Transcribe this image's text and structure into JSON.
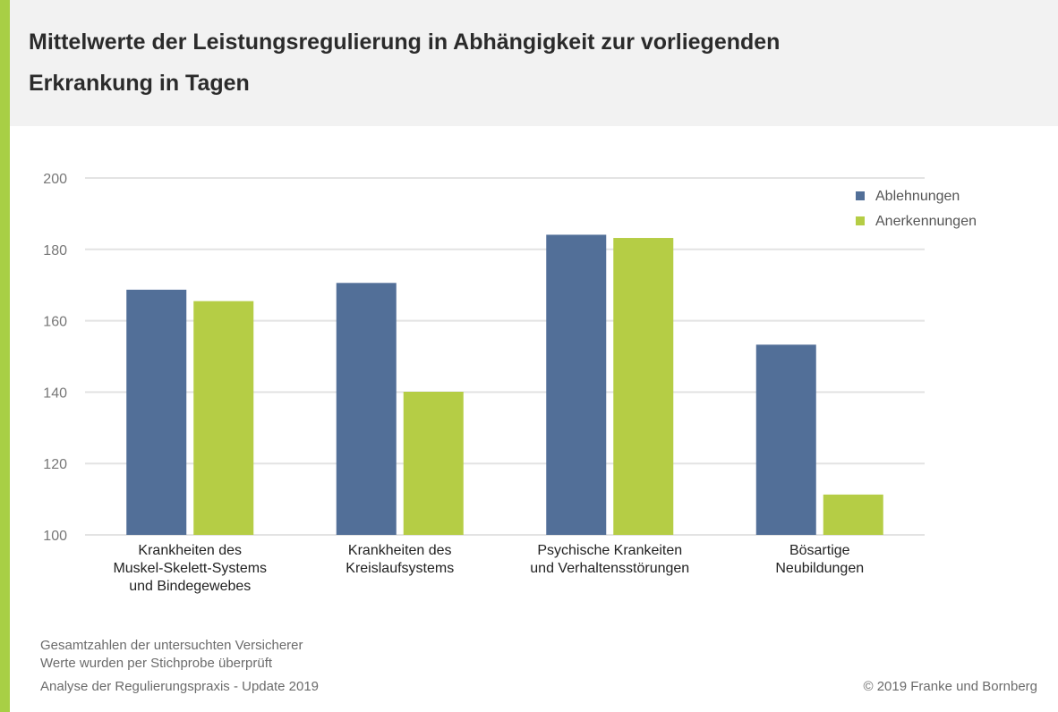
{
  "title_lines": [
    "Mittelwerte der Leistungsregulierung in Abhängigkeit zur vorliegenden",
    "Erkrankung in Tagen"
  ],
  "footer": {
    "note_lines": [
      "Gesamtzahlen der untersuchten Versicherer",
      "Werte wurden per Stichprobe überprüft"
    ],
    "source": "Analyse der Regulierungspraxis - Update 2019",
    "copyright": "© 2019 Franke und Bornberg"
  },
  "colors": {
    "accent": "#a8cf45",
    "series1": "#526f98",
    "series2": "#b5cd45"
  },
  "chart_data": {
    "type": "bar",
    "category_lines": [
      [
        "Krankheiten des",
        "Muskel-Skelett-Systems",
        "und Bindegewebes"
      ],
      [
        "Krankheiten des",
        "Kreislaufsystems"
      ],
      [
        "Psychische Krankeiten",
        "und Verhaltensstörungen"
      ],
      [
        "Bösartige",
        "Neubildungen"
      ]
    ],
    "series": [
      {
        "name": "Ablehnungen",
        "values": [
          168.7,
          170.6,
          184.1,
          153.3
        ]
      },
      {
        "name": "Anerkennungen",
        "values": [
          165.5,
          140.1,
          183.2,
          111.3
        ]
      }
    ],
    "ylim": [
      100,
      200
    ],
    "yticks": [
      100,
      120,
      140,
      160,
      180,
      200
    ],
    "grid": true,
    "legend": "top-right"
  }
}
